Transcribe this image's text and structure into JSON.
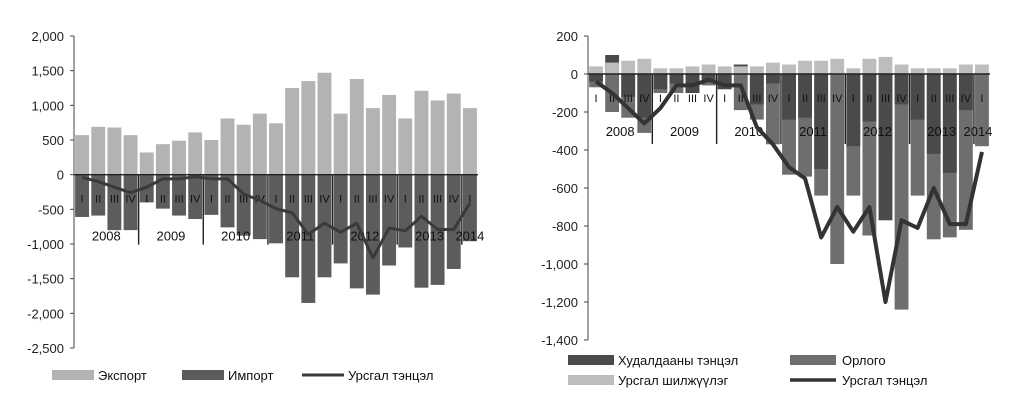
{
  "chart_data": [
    {
      "type": "bar",
      "y_ticks": [
        "2,000",
        "1,500",
        "1,000",
        "500",
        "0",
        "-500",
        "-1,000",
        "-1,500",
        "-2,000",
        "-2,500"
      ],
      "ylim": [
        -2500,
        2000
      ],
      "quarter_labels": [
        "I",
        "II",
        "III",
        "IV",
        "I",
        "II",
        "III",
        "IV",
        "I",
        "II",
        "III",
        "IV",
        "I",
        "II",
        "III",
        "IV",
        "I",
        "II",
        "III",
        "IV",
        "I",
        "II",
        "III",
        "IV",
        "I"
      ],
      "years": [
        "2008",
        "2009",
        "2010",
        "2011",
        "2012",
        "2013",
        "2014"
      ],
      "series": [
        {
          "name": "Экспорт",
          "values": [
            570,
            690,
            680,
            570,
            320,
            440,
            490,
            610,
            500,
            810,
            720,
            880,
            740,
            1250,
            1350,
            1470,
            880,
            1380,
            960,
            1150,
            810,
            1210,
            1070,
            1170,
            960
          ]
        },
        {
          "name": "Импорт",
          "values": [
            -610,
            -590,
            -800,
            -800,
            -400,
            -490,
            -590,
            -640,
            -580,
            -760,
            -880,
            -930,
            -990,
            -1480,
            -1850,
            -1480,
            -1280,
            -1640,
            -1730,
            -1310,
            -1050,
            -1630,
            -1590,
            -1360,
            -960
          ]
        },
        {
          "name": "Урсгал тэнцэл",
          "values": [
            -40,
            -100,
            -180,
            -260,
            -180,
            -60,
            -60,
            -30,
            -60,
            -60,
            -280,
            -370,
            -490,
            -550,
            -860,
            -700,
            -830,
            -700,
            -1200,
            -770,
            -810,
            -600,
            -790,
            -790,
            -410
          ]
        }
      ],
      "legend": [
        "Экспорт",
        "Импорт",
        "Урсгал тэнцэл"
      ],
      "legend_position": "bottom",
      "colors": {
        "export": "#b3b3b3",
        "import": "#5c5c5c",
        "current_account": "#3a3a3a"
      }
    },
    {
      "type": "bar",
      "y_ticks": [
        "200",
        "0",
        "-200",
        "-400",
        "-600",
        "-800",
        "-1,000",
        "-1,200",
        "-1,400"
      ],
      "ylim": [
        -1400,
        200
      ],
      "quarter_labels": [
        "I",
        "II",
        "III",
        "IV",
        "I",
        "II",
        "III",
        "IV",
        "I",
        "II",
        "III",
        "IV",
        "I",
        "II",
        "III",
        "IV",
        "I",
        "II",
        "III",
        "IV",
        "I",
        "II",
        "III",
        "IV",
        "I"
      ],
      "years": [
        "2008",
        "2009",
        "2010",
        "2011",
        "2012",
        "2013",
        "2014"
      ],
      "series": [
        {
          "name": "Худалдааны тэнцэл",
          "values": [
            -40,
            100,
            -120,
            -230,
            -80,
            -50,
            -100,
            -30,
            -80,
            50,
            -160,
            -50,
            -240,
            -230,
            -500,
            10,
            -380,
            -250,
            -770,
            -160,
            -240,
            -420,
            -520,
            -190,
            0
          ]
        },
        {
          "name": "Орлого",
          "values": [
            -70,
            -200,
            -230,
            -310,
            -100,
            -100,
            -90,
            -60,
            -80,
            -190,
            -240,
            -370,
            -530,
            -540,
            -640,
            -1000,
            -640,
            -850,
            -400,
            -1240,
            -640,
            -870,
            -860,
            -820,
            -380
          ]
        },
        {
          "name": "Урсгал шилжүүлэг",
          "values": [
            40,
            60,
            70,
            80,
            30,
            30,
            40,
            50,
            40,
            40,
            40,
            60,
            50,
            70,
            70,
            80,
            30,
            80,
            90,
            50,
            30,
            30,
            30,
            50,
            50
          ]
        },
        {
          "name": "Урсгал тэнцэл",
          "values": [
            -40,
            -100,
            -180,
            -260,
            -180,
            -60,
            -60,
            -30,
            -60,
            -60,
            -280,
            -370,
            -490,
            -550,
            -860,
            -700,
            -830,
            -700,
            -1200,
            -770,
            -810,
            -600,
            -790,
            -790,
            -410
          ]
        }
      ],
      "legend": [
        "Худалдааны тэнцэл",
        "Орлого",
        "Урсгал шилжүүлэг",
        "Урсгал тэнцэл"
      ],
      "legend_position": "bottom",
      "colors": {
        "trade": "#4a4a4a",
        "income": "#6e6e6e",
        "transfers": "#bdbdbd",
        "current_account": "#333333"
      }
    }
  ]
}
